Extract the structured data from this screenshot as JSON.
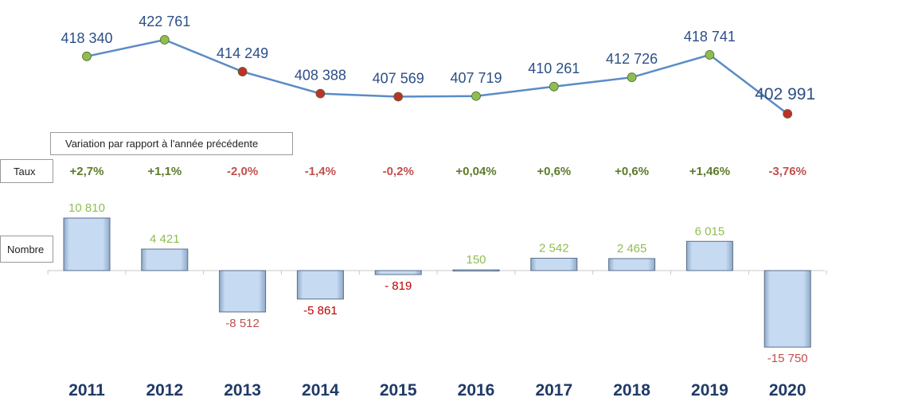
{
  "variation_caption": "Variation par rapport à l'année précédente",
  "row_labels": {
    "taux": "Taux",
    "nombre": "Nombre"
  },
  "colors": {
    "line": "#5b8bc5",
    "label_blue": "#2c4f86",
    "increase": "#5e7a2c",
    "decrease": "#c0504d",
    "dot_green": "#8fbd52",
    "dot_red": "#c0302a",
    "bar_fill": "#c6daf2",
    "year": "#1f3a68"
  },
  "chart_data": {
    "type": "line+bar",
    "categories": [
      "2011",
      "2012",
      "2013",
      "2014",
      "2015",
      "2016",
      "2017",
      "2018",
      "2019",
      "2020"
    ],
    "series": [
      {
        "values": [
          418340,
          422761,
          414249,
          408388,
          407569,
          407719,
          410261,
          412726,
          418741,
          402991
        ],
        "labels": [
          "418 340",
          "422 761",
          "414 249",
          "408 388",
          "407 569",
          "407 719",
          "410 261",
          "412 726",
          "418 741",
          "402 991"
        ],
        "point_colors": [
          "green",
          "green",
          "red",
          "red",
          "red",
          "green",
          "green",
          "green",
          "green",
          "red"
        ]
      },
      {
        "values": [
          10810,
          4421,
          -8512,
          -5861,
          -819,
          150,
          2542,
          2465,
          6015,
          -15750
        ],
        "labels": [
          "10 810",
          "4 421",
          "-8 512",
          "-5 861",
          "- 819",
          "150",
          "2 542",
          "2 465",
          "6 015",
          "-15 750"
        ],
        "label_colors": [
          "increase",
          "increase",
          "decrease",
          "dark_red",
          "dark_red",
          "increase",
          "increase",
          "increase",
          "increase",
          "decrease"
        ]
      }
    ],
    "rates": [
      "+2,7%",
      "+1,1%",
      "-2,0%",
      "-1,4%",
      "-0,2%",
      "+0,04%",
      "+0,6%",
      "+0,6%",
      "+1,46%",
      "-3,76%"
    ],
    "grid": false
  }
}
